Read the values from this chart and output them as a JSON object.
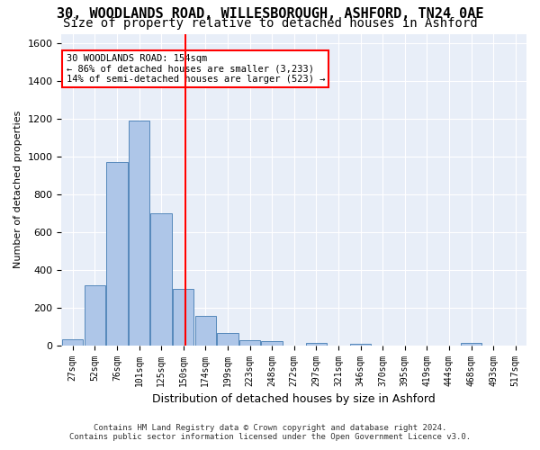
{
  "title_line1": "30, WOODLANDS ROAD, WILLESBOROUGH, ASHFORD, TN24 0AE",
  "title_line2": "Size of property relative to detached houses in Ashford",
  "xlabel": "Distribution of detached houses by size in Ashford",
  "ylabel": "Number of detached properties",
  "footer_line1": "Contains HM Land Registry data © Crown copyright and database right 2024.",
  "footer_line2": "Contains public sector information licensed under the Open Government Licence v3.0.",
  "bin_labels": [
    "27sqm",
    "52sqm",
    "76sqm",
    "101sqm",
    "125sqm",
    "150sqm",
    "174sqm",
    "199sqm",
    "223sqm",
    "248sqm",
    "272sqm",
    "297sqm",
    "321sqm",
    "346sqm",
    "370sqm",
    "395sqm",
    "419sqm",
    "444sqm",
    "468sqm",
    "493sqm",
    "517sqm"
  ],
  "bar_values": [
    30,
    320,
    970,
    1190,
    700,
    300,
    155,
    65,
    25,
    20,
    0,
    15,
    0,
    10,
    0,
    0,
    0,
    0,
    15,
    0,
    0
  ],
  "bar_color": "#aec6e8",
  "bar_edge_color": "#5588bb",
  "vline_x": 5.08,
  "vline_color": "red",
  "annotation_text": "30 WOODLANDS ROAD: 154sqm\n← 86% of detached houses are smaller (3,233)\n14% of semi-detached houses are larger (523) →",
  "annotation_box_color": "white",
  "annotation_box_edge": "red",
  "ylim": [
    0,
    1650
  ],
  "yticks": [
    0,
    200,
    400,
    600,
    800,
    1000,
    1200,
    1400,
    1600
  ],
  "background_color": "#e8eef8",
  "grid_color": "white",
  "title_fontsize": 11,
  "subtitle_fontsize": 10
}
